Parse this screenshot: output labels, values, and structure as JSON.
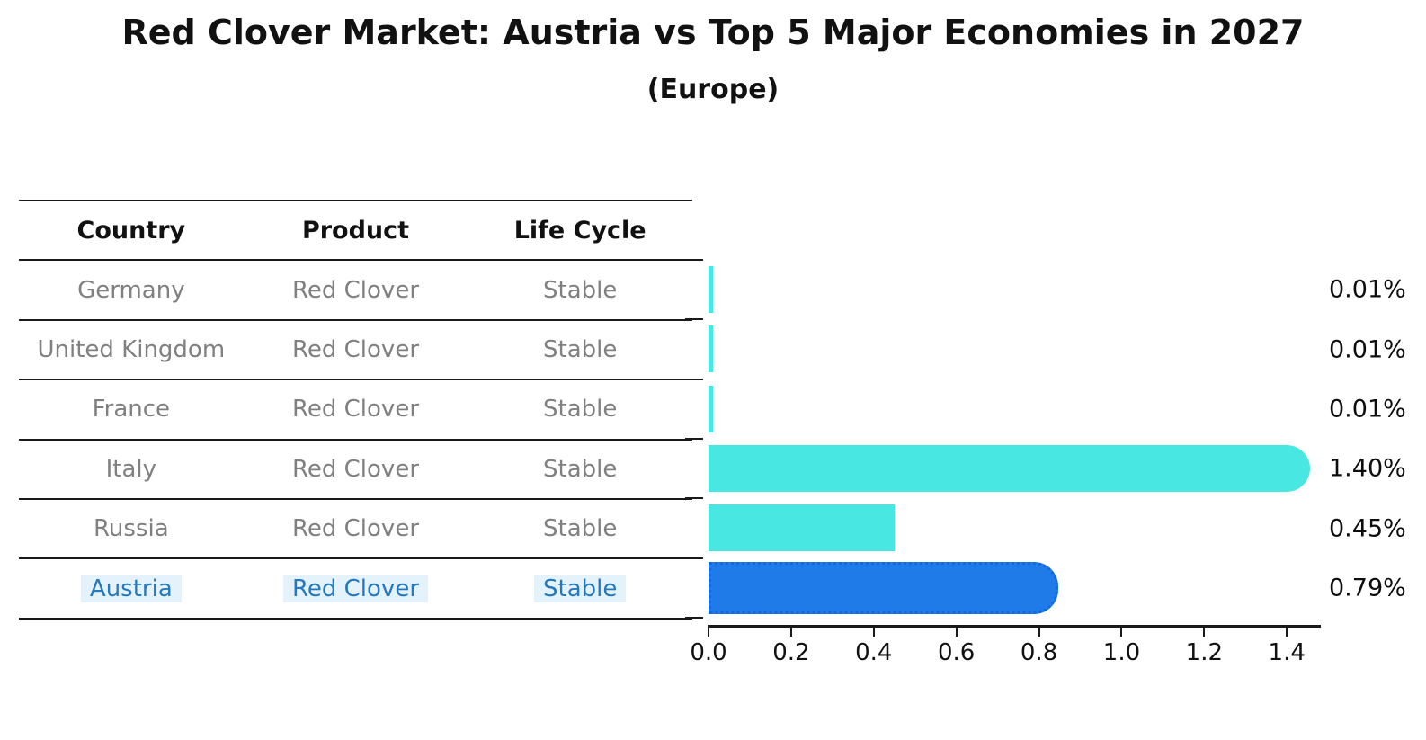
{
  "title": "Red Clover Market: Austria vs Top 5 Major Economies in 2027",
  "subtitle": "(Europe)",
  "table": {
    "headers": {
      "country": "Country",
      "product": "Product",
      "lifecycle": "Life Cycle"
    },
    "rows": [
      {
        "country": "Germany",
        "product": "Red Clover",
        "lifecycle": "Stable"
      },
      {
        "country": "United Kingdom",
        "product": "Red Clover",
        "lifecycle": "Stable"
      },
      {
        "country": "France",
        "product": "Red Clover",
        "lifecycle": "Stable"
      },
      {
        "country": "Italy",
        "product": "Red Clover",
        "lifecycle": "Stable"
      },
      {
        "country": "Russia",
        "product": "Red Clover",
        "lifecycle": "Stable"
      },
      {
        "country": "Austria",
        "product": "Red Clover",
        "lifecycle": "Stable"
      }
    ]
  },
  "chart_data": {
    "type": "bar",
    "orientation": "horizontal",
    "categories": [
      "Germany",
      "United Kingdom",
      "France",
      "Italy",
      "Russia",
      "Austria"
    ],
    "values": [
      0.01,
      0.01,
      0.01,
      1.4,
      0.45,
      0.79
    ],
    "value_labels": [
      "0.01%",
      "0.01%",
      "0.01%",
      "1.40%",
      "0.45%",
      "0.79%"
    ],
    "xlim": [
      0,
      1.48
    ],
    "xticks": [
      0.0,
      0.2,
      0.4,
      0.6,
      0.8,
      1.0,
      1.2,
      1.4
    ],
    "xtick_labels": [
      "0.0",
      "0.2",
      "0.4",
      "0.6",
      "0.8",
      "1.0",
      "1.2",
      "1.4"
    ],
    "grid": false,
    "legend": false,
    "bar_color": "#48e7e2",
    "highlight_color": "#1e7be8",
    "highlight_border_color": "#1367e0",
    "highlight_text_color": "#2479be",
    "highlight_index": 5,
    "bar_styles": [
      "flat",
      "flat",
      "flat",
      "rounded",
      "flat",
      "rounded-dotted"
    ]
  }
}
